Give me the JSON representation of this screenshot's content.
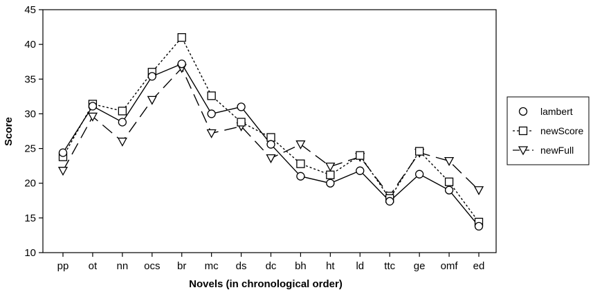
{
  "chart_data": {
    "type": "line",
    "title": "",
    "xlabel": "Novels (in chronological order)",
    "ylabel": "Score",
    "ylim": [
      10,
      45
    ],
    "yticks": [
      10,
      15,
      20,
      25,
      30,
      35,
      40,
      45
    ],
    "categories": [
      "pp",
      "ot",
      "nn",
      "ocs",
      "br",
      "mc",
      "ds",
      "dc",
      "bh",
      "ht",
      "ld",
      "ttc",
      "ge",
      "omf",
      "ed"
    ],
    "grid": false,
    "legend_position": "right",
    "series": [
      {
        "name": "lambert",
        "marker": "circle",
        "line_style": "solid",
        "values": [
          24.4,
          31.1,
          28.8,
          35.4,
          37.2,
          30.0,
          31.0,
          25.6,
          21.0,
          20.0,
          21.8,
          17.4,
          21.3,
          19.0,
          13.8
        ]
      },
      {
        "name": "newScore",
        "marker": "square",
        "line_style": "dotted",
        "values": [
          23.8,
          31.4,
          30.4,
          36.0,
          41.0,
          32.6,
          28.8,
          26.6,
          22.8,
          21.2,
          24.0,
          17.8,
          24.6,
          20.2,
          14.4
        ]
      },
      {
        "name": "newFull",
        "marker": "triangle-down",
        "line_style": "dashed",
        "values": [
          21.8,
          29.6,
          26.0,
          32.0,
          36.6,
          27.2,
          28.2,
          23.6,
          25.6,
          22.4,
          23.8,
          18.2,
          24.4,
          23.2,
          19.0
        ]
      }
    ]
  },
  "legend": {
    "items": [
      {
        "label": "lambert",
        "icon": "circle-marker-icon"
      },
      {
        "label": "newScore",
        "icon": "square-marker-icon"
      },
      {
        "label": "newFull",
        "icon": "triangle-down-marker-icon"
      }
    ]
  }
}
